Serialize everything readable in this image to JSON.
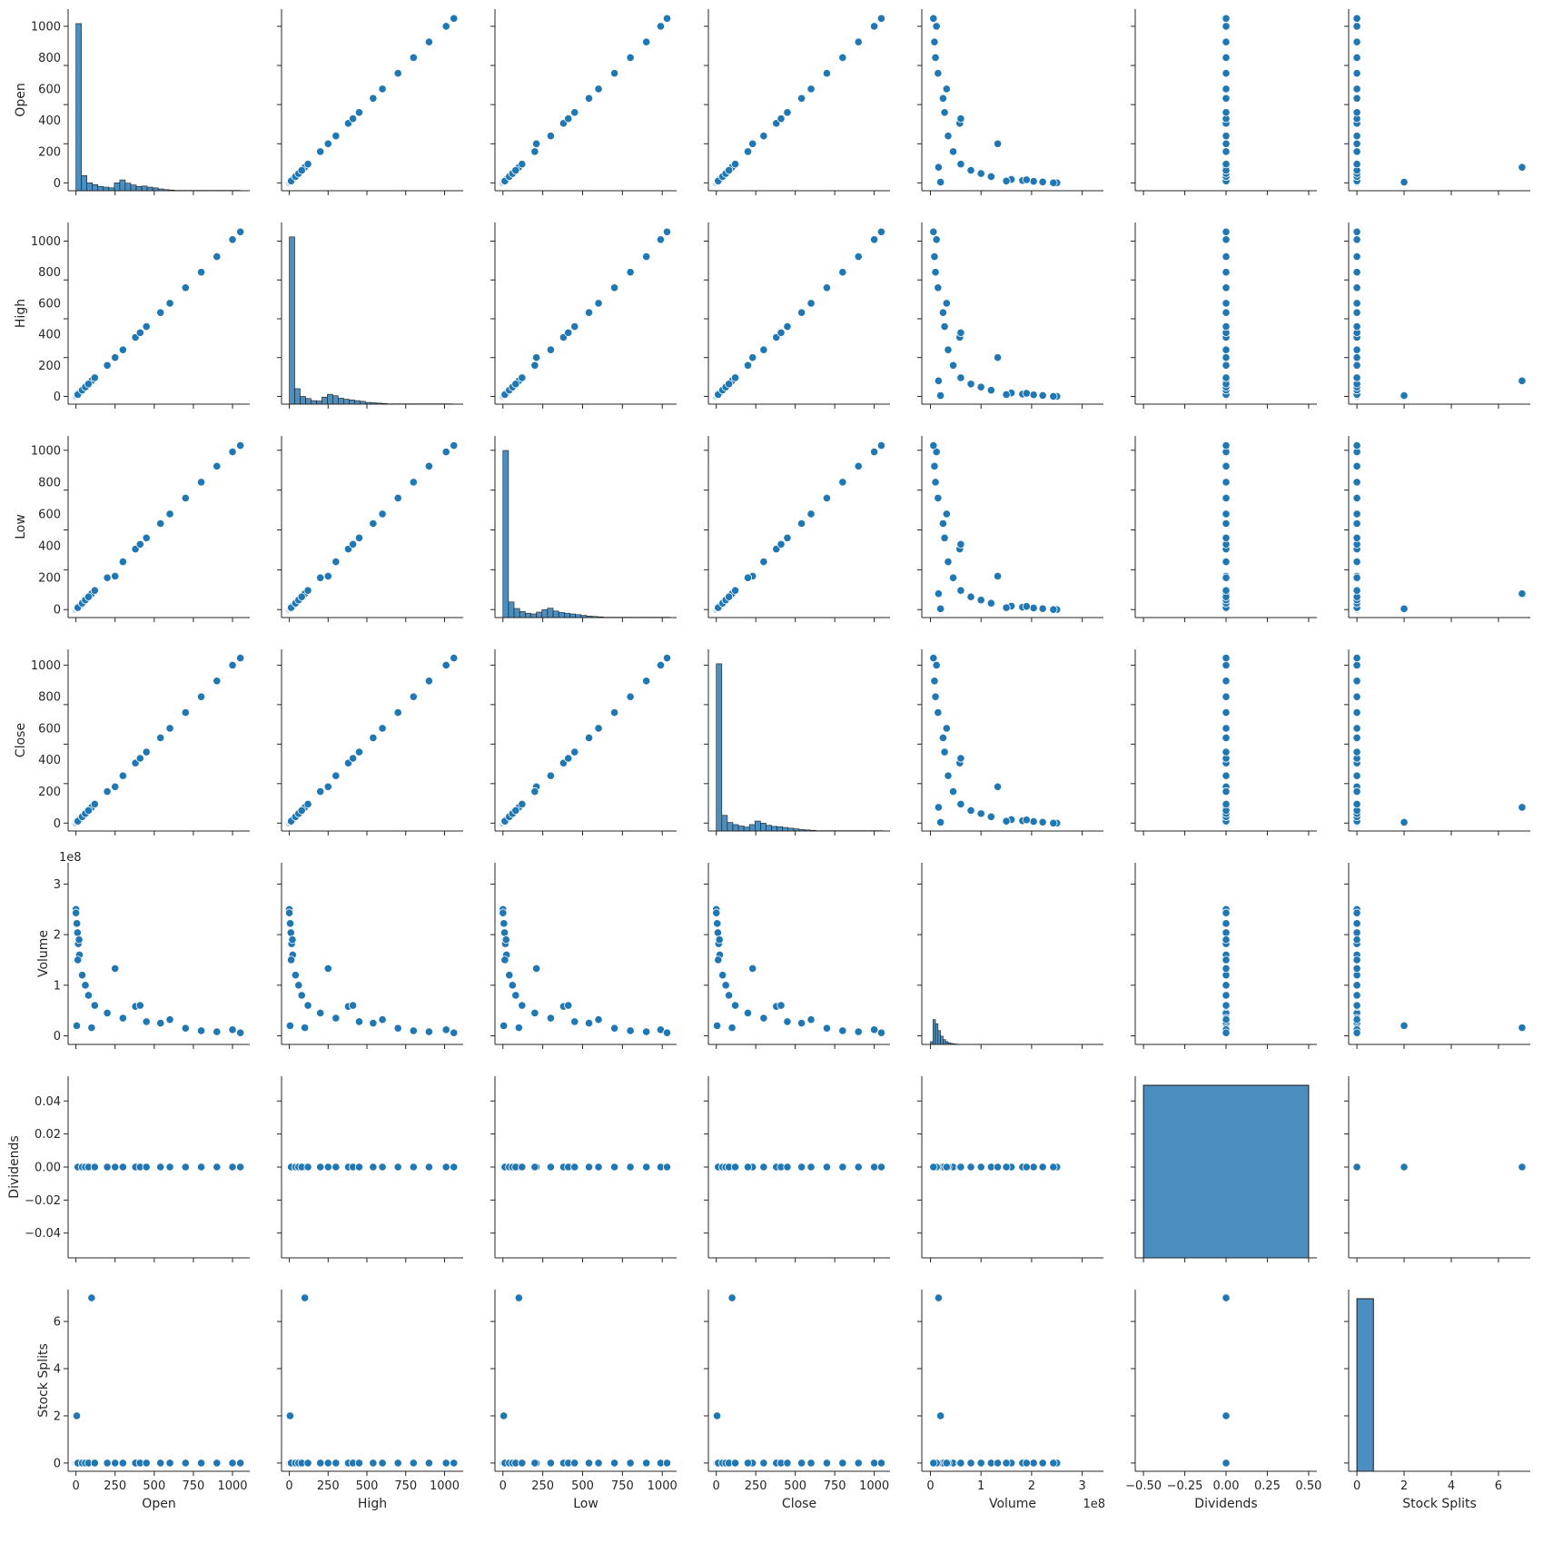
{
  "chart_data": {
    "type": "scatter",
    "kind": "pairplot",
    "variables": [
      "Open",
      "High",
      "Low",
      "Close",
      "Volume",
      "Dividends",
      "Stock Splits"
    ],
    "color": "#1f77b4",
    "hist_color": "#4b8fc0",
    "grid": false,
    "axes": {
      "Open": {
        "label": "Open",
        "lim": [
          -50,
          1110
        ],
        "ticks": [
          0,
          250,
          500,
          750,
          1000
        ],
        "y_ticks": [
          0,
          200,
          400,
          600,
          800,
          1000
        ]
      },
      "High": {
        "label": "High",
        "lim": [
          -50,
          1120
        ],
        "ticks": [
          0,
          250,
          500,
          750,
          1000
        ],
        "y_ticks": [
          0,
          200,
          400,
          600,
          800,
          1000
        ]
      },
      "Low": {
        "label": "Low",
        "lim": [
          -50,
          1090
        ],
        "ticks": [
          0,
          250,
          500,
          750,
          1000
        ],
        "y_ticks": [
          0,
          200,
          400,
          600,
          800,
          1000
        ]
      },
      "Close": {
        "label": "Close",
        "lim": [
          -50,
          1100
        ],
        "ticks": [
          0,
          250,
          500,
          750,
          1000
        ],
        "y_ticks": [
          0,
          200,
          400,
          600,
          800,
          1000
        ]
      },
      "Volume": {
        "label": "Volume",
        "lim": [
          -17000000,
          342000000
        ],
        "ticks": [
          0,
          100000000,
          200000000,
          300000000
        ],
        "tick_labels": [
          "0",
          "1",
          "2",
          "3"
        ],
        "offset_text": "1e8"
      },
      "Dividends": {
        "label": "Dividends",
        "lim": [
          -0.055,
          0.055
        ],
        "x_lim": [
          -0.55,
          0.55
        ],
        "ticks": [
          -0.04,
          -0.02,
          0.0,
          0.02,
          0.04
        ],
        "tick_labels": [
          "−0.04",
          "−0.02",
          "0.00",
          "0.02",
          "0.04"
        ],
        "x_ticks": [
          -0.5,
          -0.25,
          0,
          0.25,
          0.5
        ],
        "x_tick_labels": [
          "−0.50",
          "−0.25",
          "0.00",
          "0.25",
          "0.50"
        ]
      },
      "Stock Splits": {
        "label": "Stock Splits",
        "lim": [
          -0.35,
          7.35
        ],
        "ticks": [
          0,
          2,
          4,
          6
        ]
      }
    },
    "histograms": {
      "Open": {
        "edges_step": 35,
        "counts": [
          465,
          42,
          22,
          17,
          12,
          10,
          8,
          22,
          30,
          21,
          16,
          12,
          13,
          10,
          8,
          5,
          3,
          2,
          1,
          1,
          1,
          1,
          1,
          1,
          1,
          1,
          1,
          1,
          1,
          1
        ],
        "max": 480
      },
      "High": {
        "edges_step": 35,
        "counts": [
          475,
          44,
          22,
          16,
          10,
          9,
          20,
          28,
          24,
          17,
          14,
          12,
          10,
          8,
          5,
          4,
          3,
          2,
          1,
          1,
          1,
          1,
          1,
          1,
          1,
          1,
          1,
          1,
          1,
          1
        ],
        "max": 490
      },
      "Low": {
        "edges_step": 35,
        "counts": [
          460,
          43,
          25,
          17,
          12,
          10,
          15,
          22,
          26,
          18,
          14,
          12,
          10,
          8,
          6,
          4,
          3,
          2,
          1,
          1,
          1,
          1,
          1,
          1,
          1,
          1,
          1,
          1,
          1,
          1
        ],
        "max": 475
      },
      "Close": {
        "edges_step": 35,
        "counts": [
          470,
          44,
          24,
          18,
          14,
          11,
          18,
          28,
          22,
          16,
          13,
          12,
          10,
          8,
          6,
          4,
          3,
          2,
          1,
          1,
          1,
          1,
          1,
          1,
          1,
          1,
          1,
          1,
          1,
          1
        ],
        "max": 485
      },
      "Volume": {
        "edges_step": 5000000,
        "counts": [
          200,
          1800,
          1500,
          1000,
          600,
          350,
          200,
          120,
          70,
          40,
          25,
          15,
          8,
          5,
          3
        ],
        "max": 12500
      },
      "Dividends": {
        "edges": [
          -0.5,
          0.5
        ],
        "counts": [
          1
        ],
        "max": 1
      },
      "Stock Splits": {
        "edges": [
          0,
          0.7
        ],
        "counts": [
          1
        ],
        "max": 1
      }
    },
    "points": [
      {
        "Open": 0.1,
        "High": 0.1,
        "Low": 0.1,
        "Close": 0.1,
        "Volume": 250000000,
        "Dividends": 0,
        "Stock Splits": 0
      },
      {
        "Open": 0.1,
        "High": 0.1,
        "Low": 0.1,
        "Close": 0.1,
        "Volume": 243000000,
        "Dividends": 0,
        "Stock Splits": 0
      },
      {
        "Open": 5,
        "High": 5,
        "Low": 5,
        "Close": 5,
        "Volume": 20000000,
        "Dividends": 0,
        "Stock Splits": 2
      },
      {
        "Open": 100,
        "High": 100,
        "Low": 100,
        "Close": 100,
        "Volume": 16000000,
        "Dividends": 0,
        "Stock Splits": 7
      },
      {
        "Open": 6,
        "High": 6,
        "Low": 6,
        "Close": 6,
        "Volume": 222000000,
        "Dividends": 0,
        "Stock Splits": 0
      },
      {
        "Open": 10,
        "High": 10,
        "Low": 10,
        "Close": 10,
        "Volume": 204000000,
        "Dividends": 0,
        "Stock Splits": 0
      },
      {
        "Open": 15,
        "High": 15,
        "Low": 15,
        "Close": 15,
        "Volume": 182000000,
        "Dividends": 0,
        "Stock Splits": 0
      },
      {
        "Open": 20,
        "High": 20,
        "Low": 20,
        "Close": 20,
        "Volume": 190000000,
        "Dividends": 0,
        "Stock Splits": 0
      },
      {
        "Open": 22,
        "High": 22,
        "Low": 22,
        "Close": 22,
        "Volume": 160000000,
        "Dividends": 0,
        "Stock Splits": 0
      },
      {
        "Open": 12,
        "High": 12,
        "Low": 12,
        "Close": 12,
        "Volume": 150000000,
        "Dividends": 0,
        "Stock Splits": 0
      },
      {
        "Open": 40,
        "High": 40,
        "Low": 40,
        "Close": 40,
        "Volume": 120000000,
        "Dividends": 0,
        "Stock Splits": 0
      },
      {
        "Open": 60,
        "High": 60,
        "Low": 60,
        "Close": 60,
        "Volume": 100000000,
        "Dividends": 0,
        "Stock Splits": 0
      },
      {
        "Open": 250,
        "High": 250,
        "Low": 210,
        "Close": 230,
        "Volume": 133000000,
        "Dividends": 0,
        "Stock Splits": 0
      },
      {
        "Open": 80,
        "High": 80,
        "Low": 80,
        "Close": 80,
        "Volume": 80000000,
        "Dividends": 0,
        "Stock Splits": 0
      },
      {
        "Open": 120,
        "High": 120,
        "Low": 120,
        "Close": 120,
        "Volume": 60000000,
        "Dividends": 0,
        "Stock Splits": 0
      },
      {
        "Open": 200,
        "High": 200,
        "Low": 200,
        "Close": 200,
        "Volume": 45000000,
        "Dividends": 0,
        "Stock Splits": 0
      },
      {
        "Open": 300,
        "High": 300,
        "Low": 300,
        "Close": 300,
        "Volume": 35000000,
        "Dividends": 0,
        "Stock Splits": 0
      },
      {
        "Open": 380,
        "High": 380,
        "Low": 380,
        "Close": 380,
        "Volume": 58000000,
        "Dividends": 0,
        "Stock Splits": 0
      },
      {
        "Open": 410,
        "High": 410,
        "Low": 410,
        "Close": 410,
        "Volume": 60000000,
        "Dividends": 0,
        "Stock Splits": 0
      },
      {
        "Open": 450,
        "High": 450,
        "Low": 450,
        "Close": 450,
        "Volume": 28000000,
        "Dividends": 0,
        "Stock Splits": 0
      },
      {
        "Open": 540,
        "High": 540,
        "Low": 540,
        "Close": 540,
        "Volume": 25000000,
        "Dividends": 0,
        "Stock Splits": 0
      },
      {
        "Open": 600,
        "High": 600,
        "Low": 600,
        "Close": 600,
        "Volume": 32000000,
        "Dividends": 0,
        "Stock Splits": 0
      },
      {
        "Open": 700,
        "High": 700,
        "Low": 700,
        "Close": 700,
        "Volume": 15000000,
        "Dividends": 0,
        "Stock Splits": 0
      },
      {
        "Open": 800,
        "High": 800,
        "Low": 800,
        "Close": 800,
        "Volume": 10000000,
        "Dividends": 0,
        "Stock Splits": 0
      },
      {
        "Open": 900,
        "High": 900,
        "Low": 900,
        "Close": 900,
        "Volume": 8000000,
        "Dividends": 0,
        "Stock Splits": 0
      },
      {
        "Open": 1000,
        "High": 1010,
        "Low": 990,
        "Close": 1000,
        "Volume": 12000000,
        "Dividends": 0,
        "Stock Splits": 0
      },
      {
        "Open": 1050,
        "High": 1060,
        "Low": 1030,
        "Close": 1045,
        "Volume": 6000000,
        "Dividends": 0,
        "Stock Splits": 0
      }
    ]
  }
}
